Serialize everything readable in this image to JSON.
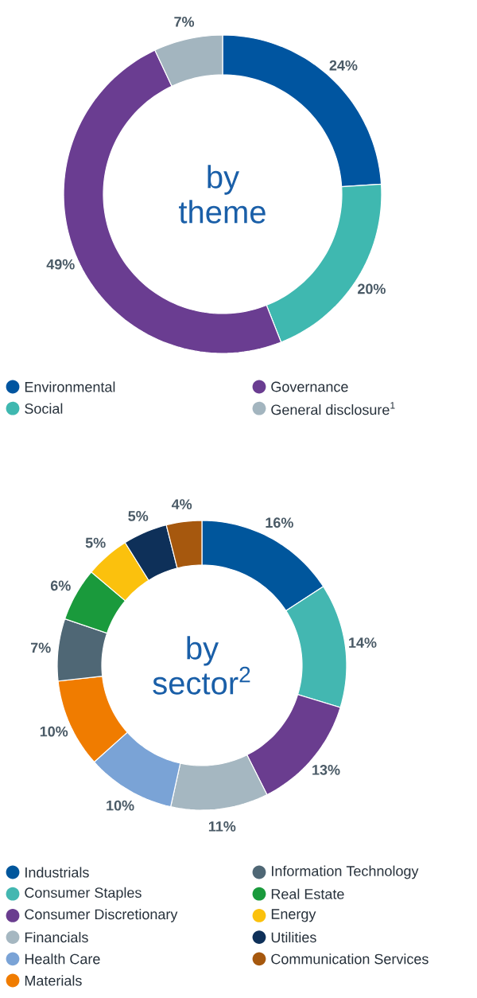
{
  "chart_data": [
    {
      "type": "donut",
      "title": "by theme",
      "categories": [
        "Environmental",
        "Social",
        "Governance",
        "General disclosure$^{1}$"
      ],
      "values": [
        24,
        20,
        49,
        7
      ],
      "colors": [
        "#0055a0",
        "#3fb8b0",
        "#6a3d91",
        "#a3b5bf"
      ],
      "value_labels": [
        "24%",
        "20%",
        "49%",
        "7%"
      ],
      "legend": "bottom"
    },
    {
      "type": "donut",
      "title": "by sector$^{2}$",
      "categories": [
        "Industrials",
        "Consumer Staples",
        "Consumer Discretionary",
        "Financials",
        "Health Care",
        "Materials",
        "Information Technology",
        "Real Estate",
        "Energy",
        "Utilities",
        "Communication Services"
      ],
      "values": [
        16,
        14,
        13,
        11,
        10,
        10,
        7,
        6,
        5,
        5,
        4
      ],
      "colors": [
        "#00569c",
        "#43b7b1",
        "#6a3d8f",
        "#a5b7c1",
        "#7aa3d6",
        "#f07c00",
        "#4f6775",
        "#1a9a3c",
        "#fbc10d",
        "#0e3059",
        "#a6580e"
      ],
      "value_labels": [
        "16%",
        "14%",
        "13%",
        "11%",
        "10%",
        "10%",
        "7%",
        "6%",
        "5%",
        "5%",
        "4%"
      ],
      "legend": "bottom"
    }
  ]
}
